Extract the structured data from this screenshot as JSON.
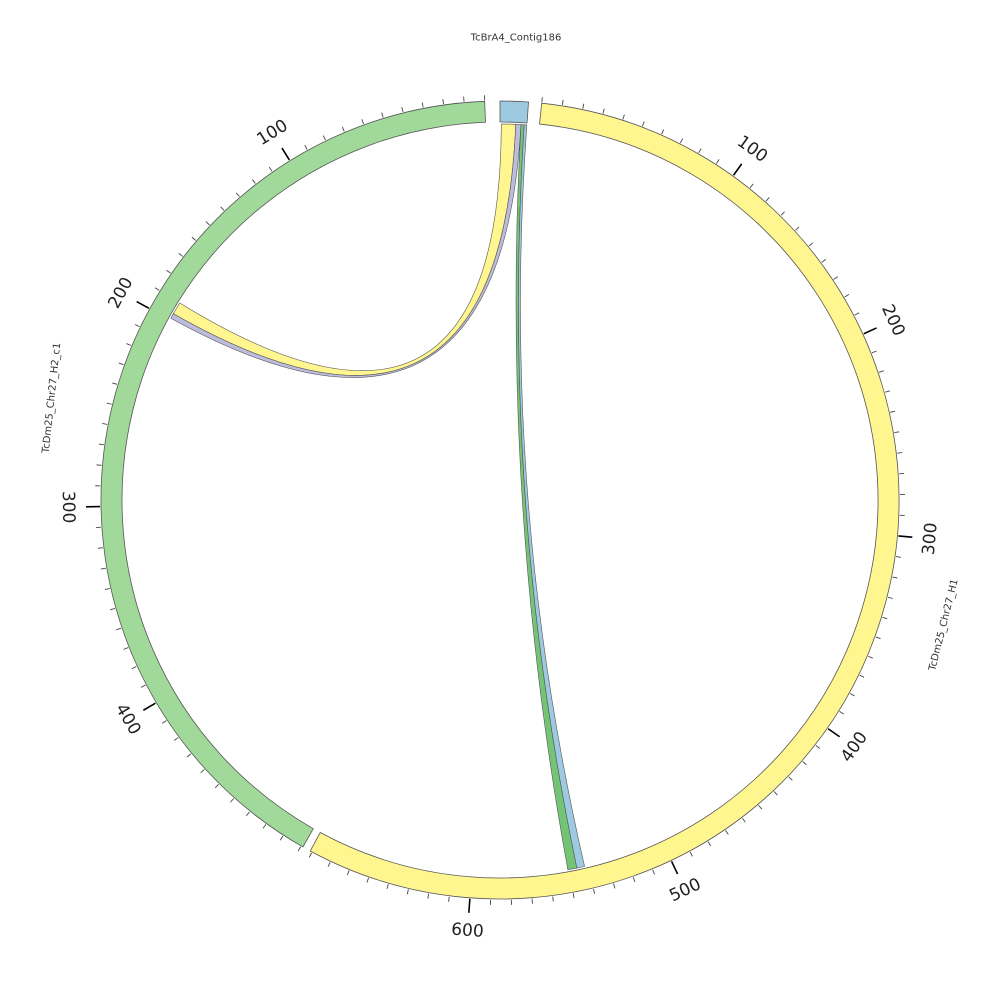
{
  "figure": {
    "type": "circos",
    "segments": [
      {
        "id": "contig",
        "name": "TcBrA4_Contig186",
        "color": "#9ecae1",
        "tick_labels": []
      },
      {
        "id": "h1",
        "name": "TcDm25_Chr27_H1",
        "color": "#fff68f",
        "tick_labels": [
          "100",
          "200",
          "300",
          "400",
          "500",
          "600"
        ]
      },
      {
        "id": "h2",
        "name": "TcDm25_Chr27_H2_c1",
        "color": "#a1d99b",
        "tick_labels": [
          "100",
          "200",
          "300",
          "400"
        ]
      }
    ],
    "links": [
      {
        "name": "link-contig-h1-green",
        "color": "#74c476",
        "from": "TcBrA4_Contig186",
        "to": "TcDm25_Chr27_H1"
      },
      {
        "name": "link-contig-h1-blue",
        "color": "#9ecae1",
        "from": "TcBrA4_Contig186",
        "to": "TcDm25_Chr27_H1"
      },
      {
        "name": "link-contig-h2-yellow",
        "color": "#fff68f",
        "from": "TcBrA4_Contig186",
        "to": "TcDm25_Chr27_H2_c1"
      },
      {
        "name": "link-contig-h2-purple",
        "color": "#bcbddc",
        "from": "TcBrA4_Contig186",
        "to": "TcDm25_Chr27_H2_c1"
      }
    ]
  }
}
